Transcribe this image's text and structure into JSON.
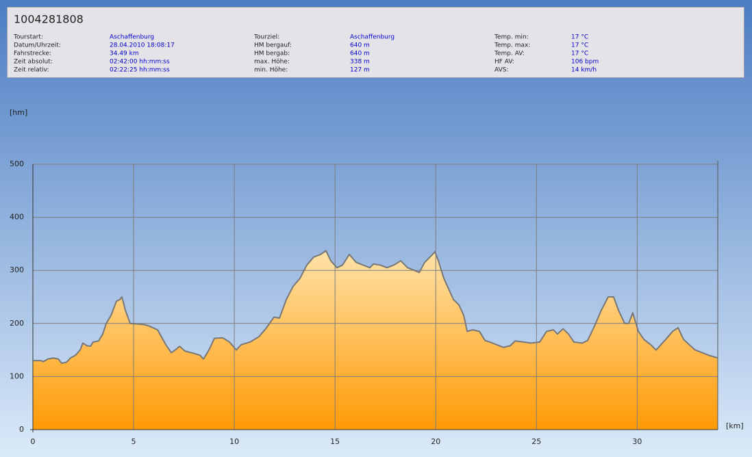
{
  "header": {
    "title": "1004281808"
  },
  "info": {
    "columns": [
      [
        {
          "label": "Tourstart:",
          "value": "Aschaffenburg"
        },
        {
          "label": "Datum/Uhrzeit:",
          "value": "28.04.2010 18:08:17"
        },
        {
          "label": "Fahrstrecke:",
          "value": "34.49 km"
        },
        {
          "label": "Zeit absolut:",
          "value": "02:42:00 hh:mm:ss"
        },
        {
          "label": "Zeit relativ:",
          "value": "02:22:25 hh:mm:ss"
        }
      ],
      [
        {
          "label": "Tourziel:",
          "value": "Aschaffenburg"
        },
        {
          "label": "HM bergauf:",
          "value": "640 m"
        },
        {
          "label": "HM bergab:",
          "value": "640 m"
        },
        {
          "label": "max. Höhe:",
          "value": "338 m"
        },
        {
          "label": "min. Höhe:",
          "value": "127 m"
        }
      ],
      [
        {
          "label": "Temp. min:",
          "value": "17 °C"
        },
        {
          "label": "Temp. max:",
          "value": "17 °C"
        },
        {
          "label": "Temp. AV:",
          "value": "17 °C"
        },
        {
          "label": "HF AV:",
          "value": "106 bpm"
        },
        {
          "label": "AVS:",
          "value": "14 km/h"
        }
      ]
    ]
  },
  "chart_data": {
    "type": "area",
    "ylabel": "[hm]",
    "xlabel": "[km]",
    "color": "#777777",
    "fill_top": "#ffe2a8",
    "fill_bottom": "#ff9a05",
    "grid": true,
    "xlim": [
      0,
      34
    ],
    "xticks": [
      0,
      5,
      10,
      15,
      20,
      25,
      30
    ],
    "ylim": [
      0,
      500
    ],
    "yticks": [
      0,
      100,
      200,
      300,
      400,
      500
    ],
    "x": [
      0,
      0.41,
      0.51,
      0.75,
      1.02,
      1.26,
      1.43,
      1.67,
      1.87,
      2.11,
      2.35,
      2.48,
      2.69,
      2.86,
      2.99,
      3.26,
      3.47,
      3.64,
      3.88,
      4.15,
      4.32,
      4.42,
      4.59,
      4.83,
      5.51,
      5.78,
      6.19,
      6.6,
      6.87,
      7.07,
      7.28,
      7.55,
      8.06,
      8.3,
      8.47,
      8.74,
      9.01,
      9.42,
      9.76,
      10.1,
      10.34,
      10.78,
      11.22,
      11.56,
      11.97,
      12.24,
      12.58,
      12.92,
      13.26,
      13.6,
      13.94,
      14.28,
      14.55,
      14.79,
      15.1,
      15.37,
      15.71,
      16.05,
      16.39,
      16.73,
      16.9,
      17.24,
      17.58,
      17.92,
      18.26,
      18.6,
      18.94,
      19.18,
      19.45,
      19.79,
      19.96,
      20.13,
      20.4,
      20.64,
      20.88,
      21.15,
      21.39,
      21.56,
      21.83,
      22.17,
      22.44,
      22.68,
      23.02,
      23.36,
      23.7,
      23.94,
      24.38,
      24.72,
      25.16,
      25.5,
      25.84,
      26.04,
      26.32,
      26.59,
      26.86,
      27.27,
      27.54,
      27.88,
      28.22,
      28.56,
      28.83,
      29.07,
      29.38,
      29.58,
      29.78,
      30.06,
      30.33,
      30.67,
      30.94,
      31.18,
      31.42,
      31.76,
      32.03,
      32.3,
      32.64,
      32.88,
      33.22,
      33.56,
      34
    ],
    "values": [
      130,
      130,
      128,
      133,
      135,
      133,
      125,
      127,
      135,
      140,
      150,
      163,
      158,
      157,
      165,
      167,
      180,
      200,
      215,
      242,
      245,
      250,
      225,
      200,
      198,
      195,
      188,
      160,
      145,
      150,
      157,
      148,
      143,
      140,
      133,
      150,
      172,
      173,
      165,
      150,
      160,
      165,
      175,
      190,
      212,
      210,
      245,
      270,
      285,
      310,
      325,
      330,
      337,
      318,
      305,
      310,
      330,
      315,
      310,
      305,
      312,
      310,
      305,
      310,
      318,
      305,
      300,
      296,
      315,
      328,
      335,
      318,
      285,
      265,
      245,
      235,
      215,
      185,
      188,
      185,
      168,
      165,
      160,
      155,
      158,
      167,
      165,
      163,
      165,
      185,
      188,
      180,
      190,
      180,
      165,
      163,
      168,
      195,
      225,
      250,
      250,
      225,
      200,
      200,
      220,
      185,
      170,
      160,
      150,
      160,
      170,
      185,
      192,
      170,
      158,
      150,
      145,
      140,
      135
    ]
  }
}
